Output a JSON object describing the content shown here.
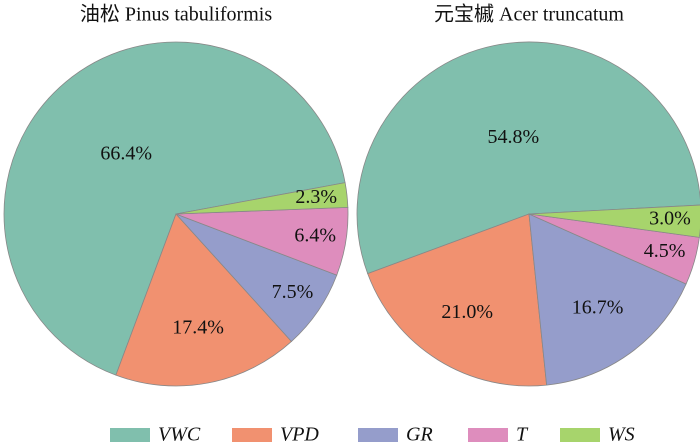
{
  "chart_data": [
    {
      "type": "pie",
      "title": "油松 Pinus tabuliformis",
      "categories": [
        "VWC",
        "VPD",
        "GR",
        "T",
        "WS"
      ],
      "values": [
        66.4,
        17.4,
        7.5,
        6.4,
        2.3
      ],
      "value_labels": [
        "66.4%",
        "17.4%",
        "7.5%",
        "6.4%",
        "2.3%"
      ],
      "colors": [
        "#80bfad",
        "#f19170",
        "#959dcb",
        "#de8dbd",
        "#a7d46c"
      ]
    },
    {
      "type": "pie",
      "title": "元宝槭 Acer truncatum",
      "categories": [
        "VWC",
        "VPD",
        "GR",
        "T",
        "WS"
      ],
      "values": [
        54.8,
        21.0,
        16.7,
        4.5,
        3.0
      ],
      "value_labels": [
        "54.8%",
        "21.0%",
        "16.7%",
        "4.5%",
        "3.0%"
      ],
      "colors": [
        "#80bfad",
        "#f19170",
        "#959dcb",
        "#de8dbd",
        "#a7d46c"
      ]
    }
  ]
}
